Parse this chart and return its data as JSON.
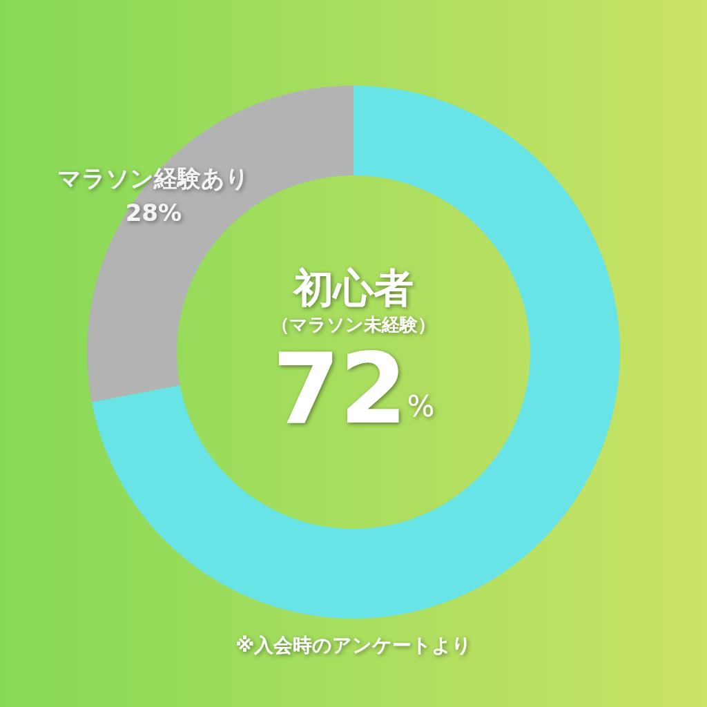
{
  "chart_data": {
    "type": "donut",
    "categories": [
      "初心者（マラソン未経験）",
      "マラソン経験あり"
    ],
    "values": [
      72,
      28
    ],
    "colors": [
      "#69e4e6",
      "#b3b3b3"
    ],
    "value_labels": [
      "72%",
      "28%"
    ],
    "legend": false,
    "annotations": [
      "※入会時のアンケートより"
    ]
  }
}
